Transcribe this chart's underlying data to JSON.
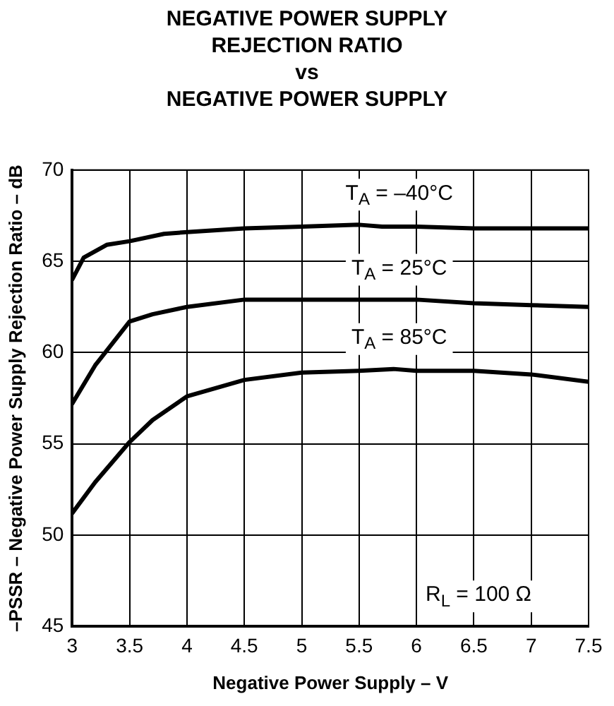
{
  "chart_data": {
    "type": "line",
    "title": "NEGATIVE POWER SUPPLY\nREJECTION RATIO\nvs\nNEGATIVE POWER SUPPLY",
    "xlabel": "Negative Power Supply – V",
    "ylabel": "–PSSR – Negative Power Supply Rejection Ratio – dB",
    "xlim": [
      3,
      7.5
    ],
    "xticks": [
      3,
      3.5,
      4,
      4.5,
      5,
      5.5,
      6,
      6.5,
      7,
      7.5
    ],
    "ylim": [
      45,
      70
    ],
    "yticks": [
      45,
      50,
      55,
      60,
      65,
      70
    ],
    "grid": true,
    "legend": false,
    "marker": "none",
    "line_style": "solid",
    "annotations": [
      "R$_{L}$ = 100 Ω"
    ],
    "series": [
      {
        "name": "T$_{A}$ = –40°C",
        "color": "#000000",
        "x": [
          3,
          3.1,
          3.3,
          3.5,
          3.8,
          4,
          4.5,
          5,
          5.5,
          5.7,
          6,
          6.5,
          7,
          7.5
        ],
        "values": [
          64,
          65.2,
          65.9,
          66.1,
          66.5,
          66.6,
          66.8,
          66.9,
          67,
          66.9,
          66.9,
          66.8,
          66.8,
          66.8
        ]
      },
      {
        "name": "T$_{A}$ = 25°C",
        "color": "#000000",
        "x": [
          3,
          3.2,
          3.5,
          3.7,
          4,
          4.5,
          5,
          5.5,
          6,
          6.5,
          7,
          7.5
        ],
        "values": [
          57.2,
          59.3,
          61.7,
          62.1,
          62.5,
          62.9,
          62.9,
          62.9,
          62.9,
          62.7,
          62.6,
          62.5
        ]
      },
      {
        "name": "T$_{A}$ = 85°C",
        "color": "#000000",
        "x": [
          3,
          3.2,
          3.5,
          3.7,
          4,
          4.5,
          5,
          5.5,
          5.8,
          6,
          6.5,
          7,
          7.5
        ],
        "values": [
          51.2,
          52.9,
          55.1,
          56.3,
          57.6,
          58.5,
          58.9,
          59,
          59.1,
          59,
          59,
          58.8,
          58.4
        ]
      }
    ]
  }
}
